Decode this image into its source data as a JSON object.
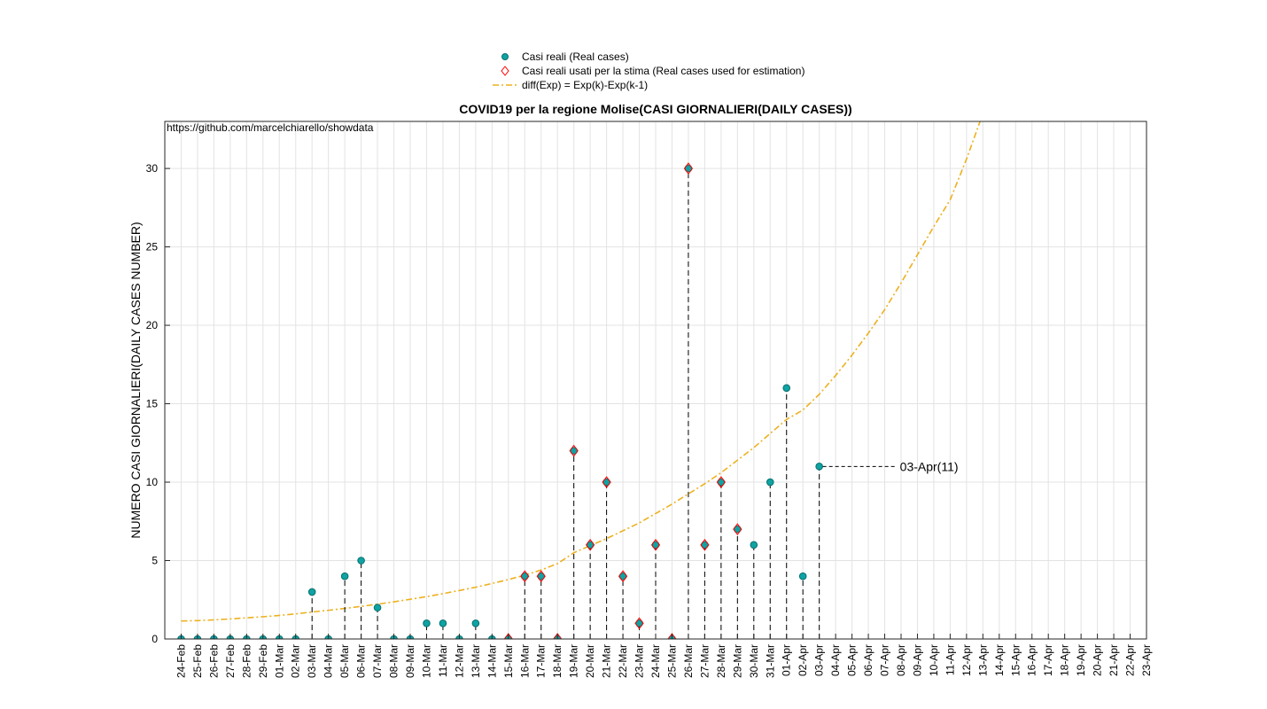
{
  "chart_data": {
    "type": "stem",
    "title": "COVID19 per la regione Molise(CASI GIORNALIERI(DAILY CASES))",
    "ylabel": "NUMERO CASI GIORNALIERI(DAILY CASES NUMBER)",
    "source": "https://github.com/marcelchiarello/showdata",
    "annotation": "03-Apr(11)",
    "categories": [
      "24-Feb",
      "25-Feb",
      "26-Feb",
      "27-Feb",
      "28-Feb",
      "29-Feb",
      "01-Mar",
      "02-Mar",
      "03-Mar",
      "04-Mar",
      "05-Mar",
      "06-Mar",
      "07-Mar",
      "08-Mar",
      "09-Mar",
      "10-Mar",
      "11-Mar",
      "12-Mar",
      "13-Mar",
      "14-Mar",
      "15-Mar",
      "16-Mar",
      "17-Mar",
      "18-Mar",
      "19-Mar",
      "20-Mar",
      "21-Mar",
      "22-Mar",
      "23-Mar",
      "24-Mar",
      "25-Mar",
      "26-Mar",
      "27-Mar",
      "28-Mar",
      "29-Mar",
      "30-Mar",
      "31-Mar",
      "01-Apr",
      "02-Apr",
      "03-Apr",
      "04-Apr",
      "05-Apr",
      "06-Apr",
      "07-Apr",
      "08-Apr",
      "09-Apr",
      "10-Apr",
      "11-Apr",
      "12-Apr",
      "13-Apr",
      "14-Apr",
      "15-Apr",
      "16-Apr",
      "17-Apr",
      "18-Apr",
      "19-Apr",
      "20-Apr",
      "21-Apr",
      "22-Apr",
      "23-Apr"
    ],
    "series": [
      {
        "name": "Casi reali (Real cases)",
        "kind": "dot",
        "color": "#0fa3a3",
        "stems": true,
        "values": [
          0,
          0,
          0,
          0,
          0,
          0,
          0,
          0,
          3,
          0,
          4,
          5,
          2,
          0,
          0,
          1,
          1,
          0,
          1,
          0,
          0,
          4,
          4,
          0,
          12,
          6,
          10,
          4,
          1,
          6,
          0,
          30,
          6,
          10,
          7,
          6,
          10,
          16,
          4,
          11,
          null,
          null,
          null,
          null,
          null,
          null,
          null,
          null,
          null,
          null,
          null,
          null,
          null,
          null,
          null,
          null,
          null,
          null,
          null,
          null
        ]
      },
      {
        "name": "Casi reali usati per la stima (Real cases used for estimation)",
        "kind": "diamond",
        "color": "#ff0000",
        "values": [
          null,
          null,
          null,
          null,
          null,
          null,
          null,
          null,
          null,
          null,
          null,
          null,
          null,
          null,
          null,
          null,
          null,
          null,
          null,
          null,
          0,
          4,
          4,
          0,
          12,
          6,
          10,
          4,
          1,
          6,
          0,
          30,
          6,
          10,
          7,
          null,
          null,
          null,
          null,
          null,
          null,
          null,
          null,
          null,
          null,
          null,
          null,
          null,
          null,
          null,
          null,
          null,
          null,
          null,
          null,
          null,
          null,
          null,
          null,
          null
        ]
      },
      {
        "name": "diff(Exp) = Exp(k)-Exp(k-1)",
        "kind": "line",
        "color": "#edb120",
        "values": [
          1.15,
          1.17,
          1.22,
          1.28,
          1.35,
          1.42,
          1.5,
          1.6,
          1.72,
          1.83,
          1.95,
          2.08,
          2.22,
          2.37,
          2.53,
          2.7,
          2.89,
          3.09,
          3.3,
          3.54,
          3.79,
          4.07,
          4.4,
          4.8,
          5.5,
          5.95,
          6.4,
          6.9,
          7.4,
          8.0,
          8.6,
          9.25,
          9.9,
          10.6,
          11.4,
          12.2,
          13.1,
          14.0,
          14.6,
          15.6,
          16.8,
          18.1,
          19.5,
          21.0,
          22.7,
          24.5,
          26.3,
          28.0,
          30.6,
          33.5,
          null,
          null,
          null,
          null,
          null,
          null,
          null,
          null,
          null,
          null
        ]
      }
    ],
    "ylim": [
      0,
      33
    ],
    "yticks": [
      0,
      5,
      10,
      15,
      20,
      25,
      30
    ],
    "grid": true,
    "legend": "top"
  }
}
